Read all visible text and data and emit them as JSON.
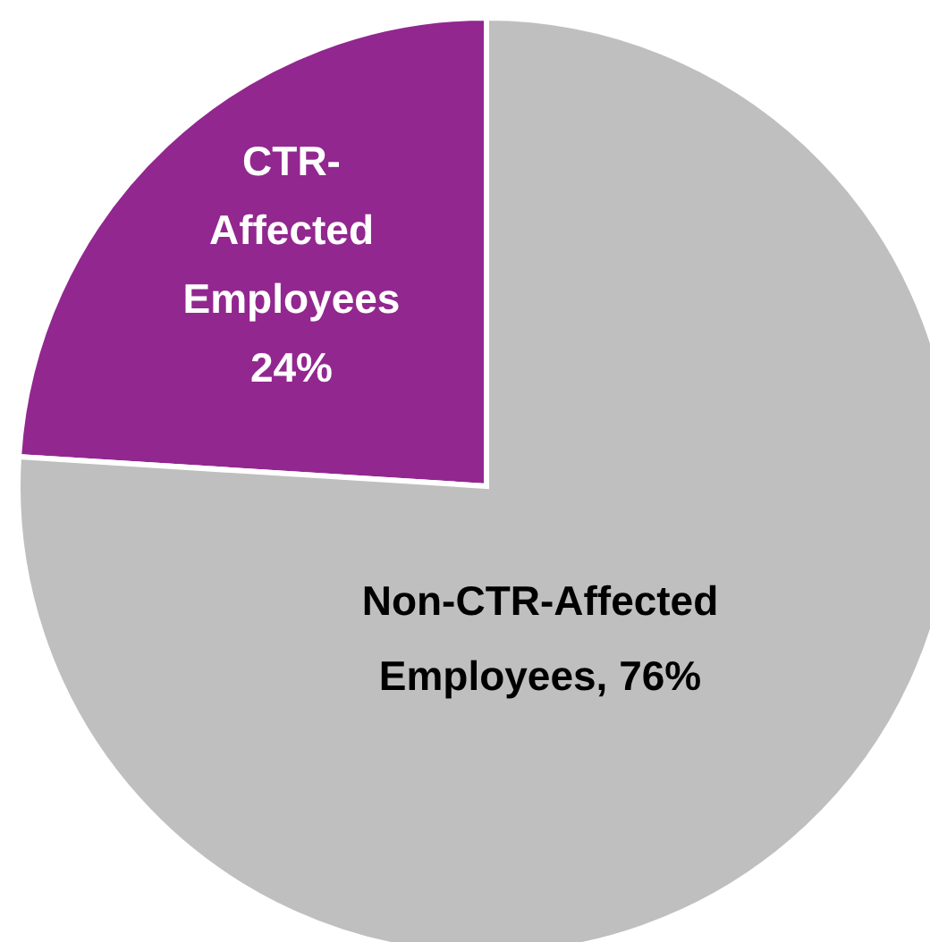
{
  "chart_data": {
    "type": "pie",
    "categories": [
      "CTR-Affected Employees",
      "Non-CTR-Affected Employees"
    ],
    "values": [
      24,
      76
    ],
    "colors": [
      "#92278f",
      "#bfbfbf"
    ],
    "value_labels": [
      "24%",
      "76%"
    ]
  }
}
